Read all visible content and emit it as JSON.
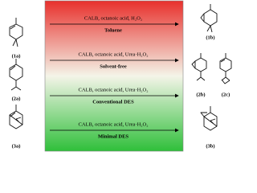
{
  "reactions": [
    {
      "reagents": "CALB, octanoic acid, H₂O₂",
      "medium": "Toluene"
    },
    {
      "reagents": "CALB, octanoic acid, Urea·H₂O₂",
      "medium": "Solvent-free"
    },
    {
      "reagents": "CALB, octanoic acid, Urea·H₂O₂",
      "medium": "Conventional DES"
    },
    {
      "reagents": "CALB, octanoic acid, Urea·H₂O₂",
      "medium": "Minimal DES"
    }
  ],
  "reactants": [
    {
      "label": "(1a)"
    },
    {
      "label": "(2a)"
    },
    {
      "label": "(3a)"
    }
  ],
  "products": [
    {
      "label": "(1b)"
    },
    {
      "label": "(2b)"
    },
    {
      "label": "(2c)"
    },
    {
      "label": "(3b)"
    }
  ]
}
